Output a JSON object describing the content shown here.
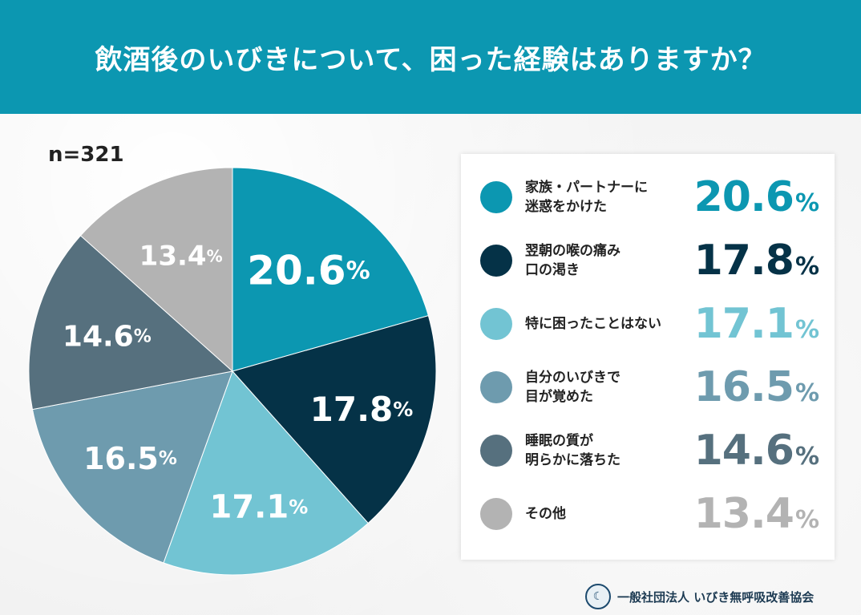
{
  "title": "飲酒後のいびきについて、困った経験はありますか？",
  "sample": "n=321",
  "chart_data": {
    "type": "pie",
    "title": "飲酒後のいびきについて、困った経験はありますか？",
    "unit": "%",
    "slices": [
      {
        "label": "家族・パートナーに\n迷惑をかけた",
        "value": 20.6,
        "color": "#0c97b1"
      },
      {
        "label": "翌朝の喉の痛み\n口の渇き",
        "value": 17.8,
        "color": "#053247"
      },
      {
        "label": "特に困ったことはない",
        "value": 17.1,
        "color": "#72c4d3"
      },
      {
        "label": "自分のいびきで\n目が覚めた",
        "value": 16.5,
        "color": "#6e9bae"
      },
      {
        "label": "睡眠の質が\n明らかに落ちた",
        "value": 14.6,
        "color": "#56707e"
      },
      {
        "label": "その他",
        "value": 13.4,
        "color": "#b3b3b3"
      }
    ]
  },
  "footer": {
    "org_name": "一般社団法人 いびき無呼吸改善協会",
    "logo_icon": "sleeping-face-icon"
  }
}
